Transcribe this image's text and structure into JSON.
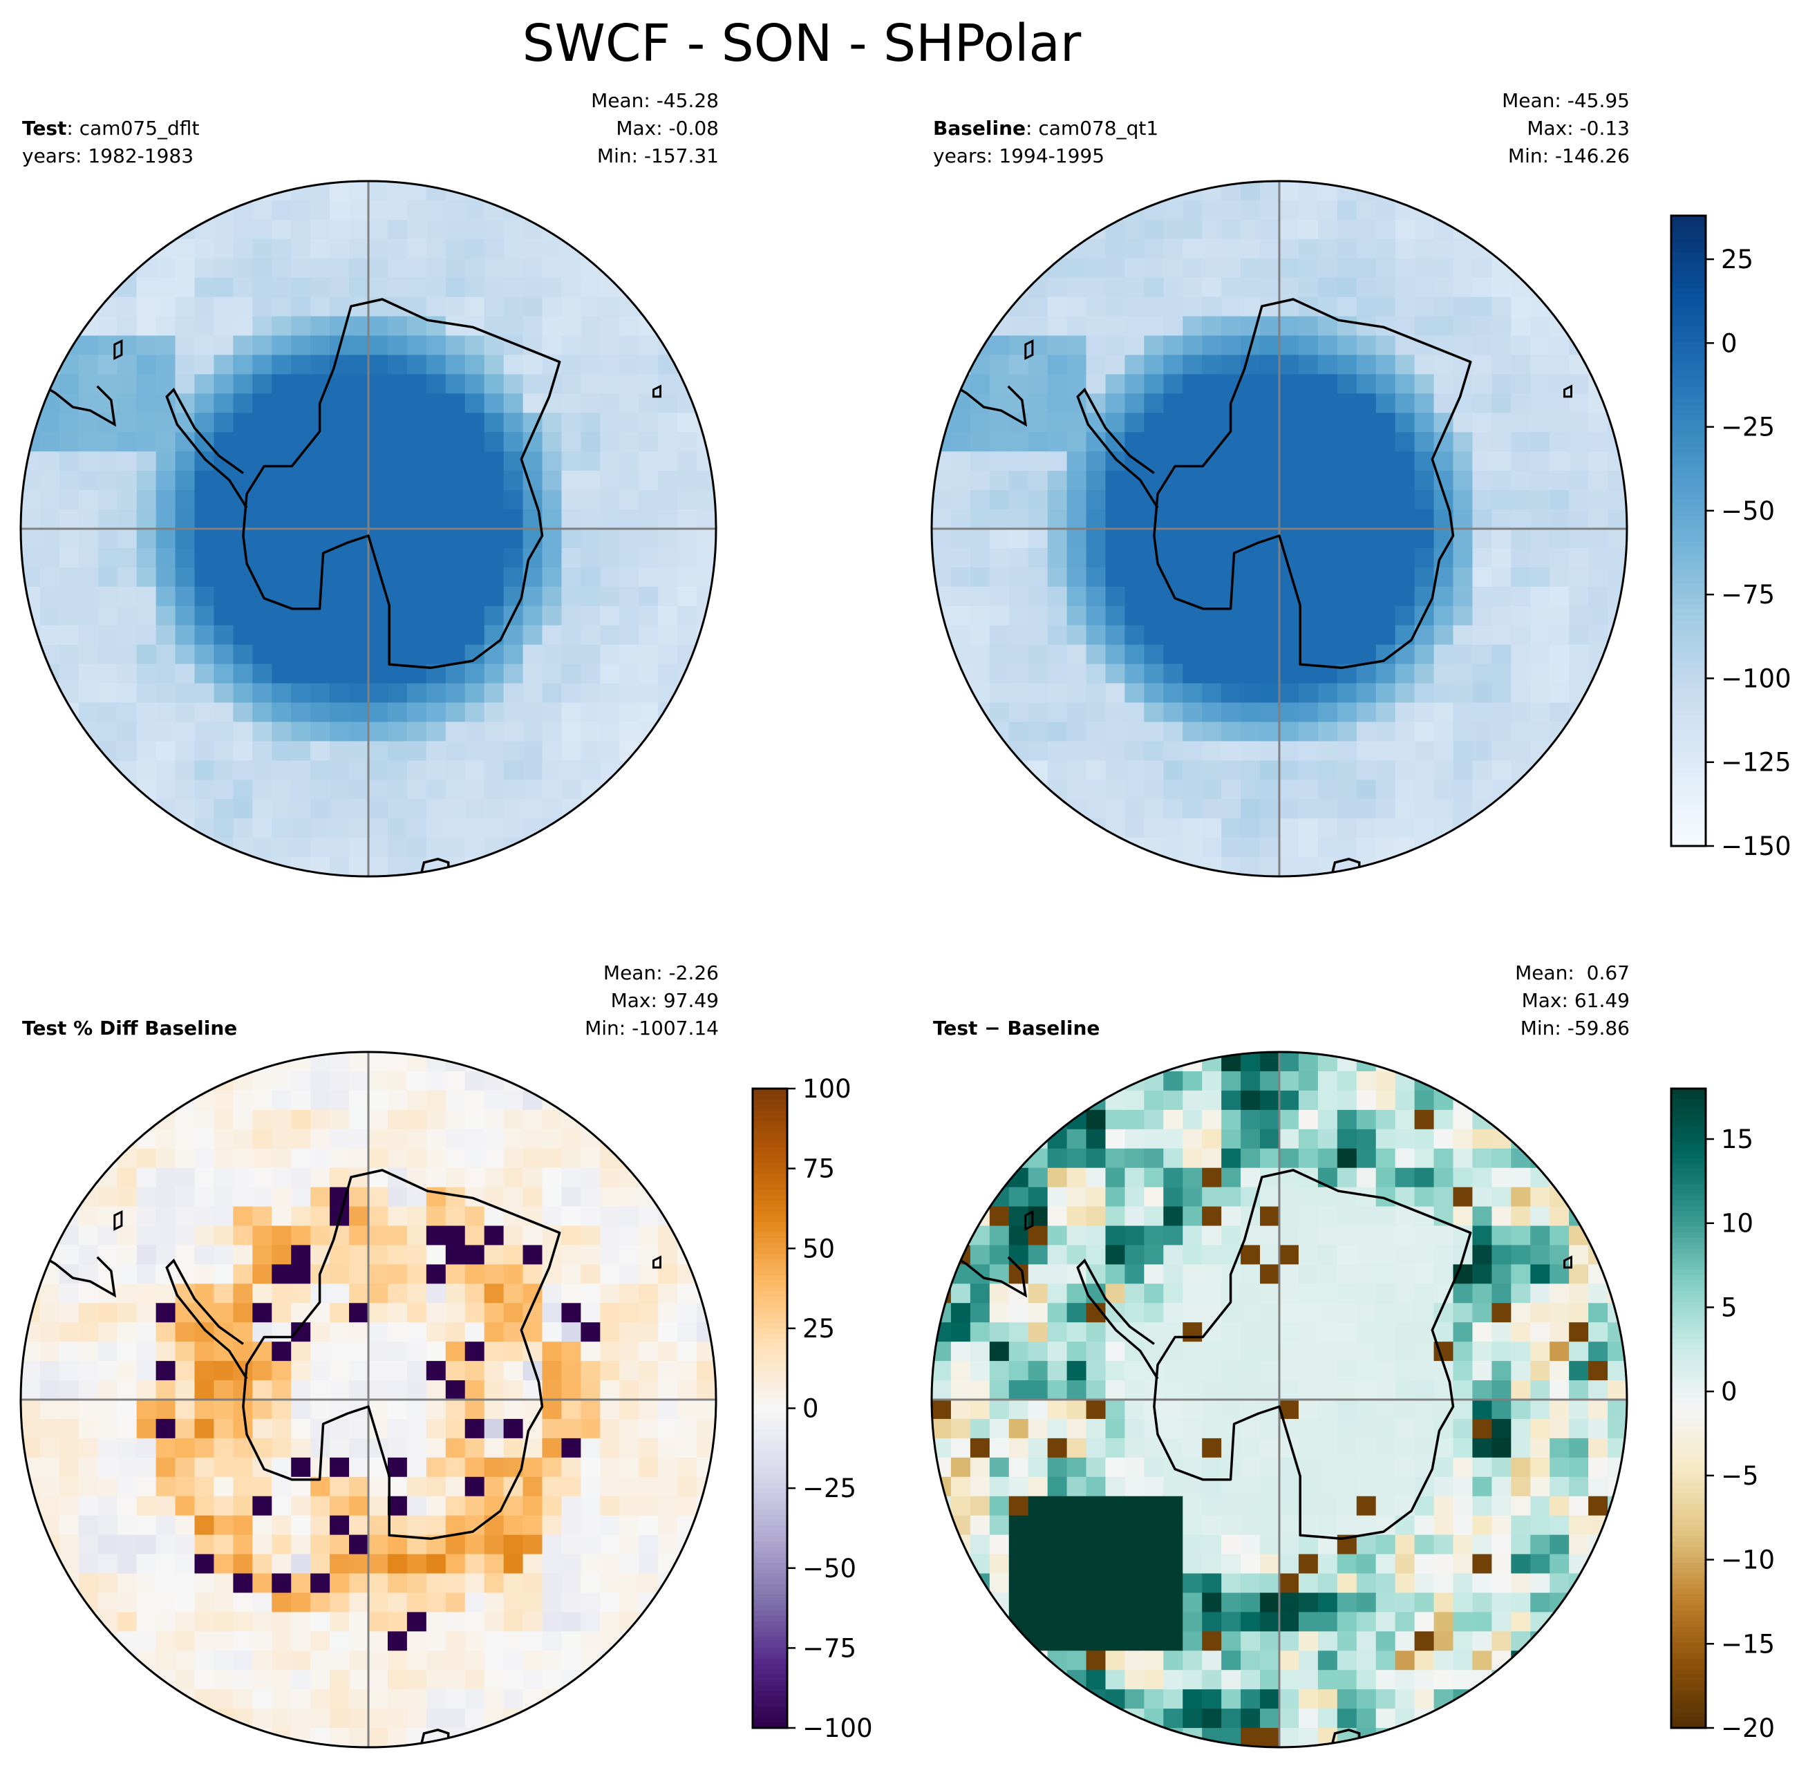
{
  "figure": {
    "title": "SWCF - SON - SHPolar"
  },
  "panels": [
    {
      "id": "test",
      "label_bold": "Test",
      "label_rest": ": cam075_dflt",
      "years": "years: 1982-1983",
      "stats": {
        "mean": "Mean: -45.28",
        "max": "Max: -0.08",
        "min": "Min: -157.31"
      },
      "colormap": "Blues",
      "colorbar": null
    },
    {
      "id": "baseline",
      "label_bold": "Baseline",
      "label_rest": ": cam078_qt1",
      "years": "years: 1994-1995",
      "stats": {
        "mean": "Mean: -45.95",
        "max": "Max: -0.13",
        "min": "Min: -146.26"
      },
      "colormap": "Blues",
      "colorbar": {
        "vmin": -150,
        "vmax": 38,
        "ticks": [
          -150,
          -125,
          -100,
          -75,
          -50,
          -25,
          0,
          25
        ],
        "tick_labels": [
          "−150",
          "−125",
          "−100",
          "−75",
          "−50",
          "−25",
          "0",
          "25"
        ]
      }
    },
    {
      "id": "pctdiff",
      "label_bold": "Test % Diff Baseline",
      "label_rest": "",
      "years": "",
      "stats": {
        "mean": "Mean: -2.26",
        "max": "Max: 97.49",
        "min": "Min: -1007.14"
      },
      "colormap": "PuOr_r",
      "colorbar": {
        "vmin": -100,
        "vmax": 100,
        "ticks": [
          -100,
          -75,
          -50,
          -25,
          0,
          25,
          50,
          75,
          100
        ],
        "tick_labels": [
          "−100",
          "−75",
          "−50",
          "−25",
          "0",
          "25",
          "50",
          "75",
          "100"
        ]
      }
    },
    {
      "id": "diff",
      "label_bold": "Test − Baseline",
      "label_rest": "",
      "years": "",
      "stats": {
        "mean": "Mean:  0.67",
        "max": "Max: 61.49",
        "min": "Min: -59.86"
      },
      "colormap": "BrBG",
      "colorbar": {
        "vmin": -20,
        "vmax": 18,
        "ticks": [
          -20,
          -15,
          -10,
          -5,
          0,
          5,
          10,
          15
        ],
        "tick_labels": [
          "−20",
          "−15",
          "−10",
          "−5",
          "0",
          "5",
          "10",
          "15"
        ]
      }
    }
  ],
  "chart_data": [
    {
      "type": "heatmap",
      "title": "Test: cam075_dflt (years: 1982-1983)",
      "projection": "South Polar Stereographic",
      "variable": "SWCF",
      "season": "SON",
      "stats": {
        "mean": -45.28,
        "max": -0.08,
        "min": -157.31
      },
      "color_range": [
        -150,
        38
      ],
      "field_description": "Strongly negative (~-110 to -130) over Southern Ocean ring, near 0 over Antarctica (~-5), mid values (~-60 to -90) in ring transition",
      "pattern": "polar_ring",
      "ring_value": -118,
      "center_value": -4
    },
    {
      "type": "heatmap",
      "title": "Baseline: cam078_qt1 (years: 1994-1995)",
      "projection": "South Polar Stereographic",
      "variable": "SWCF",
      "season": "SON",
      "stats": {
        "mean": -45.95,
        "max": -0.13,
        "min": -146.26
      },
      "color_range": [
        -150,
        38
      ],
      "pattern": "polar_ring",
      "ring_value": -120,
      "center_value": -4
    },
    {
      "type": "heatmap",
      "title": "Test % Diff Baseline",
      "stats": {
        "mean": -2.26,
        "max": 97.49,
        "min": -1007.14
      },
      "color_range": [
        -100,
        100
      ],
      "pattern": "pct_diff"
    },
    {
      "type": "heatmap",
      "title": "Test − Baseline",
      "stats": {
        "mean": 0.67,
        "max": 61.49,
        "min": -59.86
      },
      "color_range": [
        -20,
        18
      ],
      "pattern": "abs_diff"
    }
  ]
}
